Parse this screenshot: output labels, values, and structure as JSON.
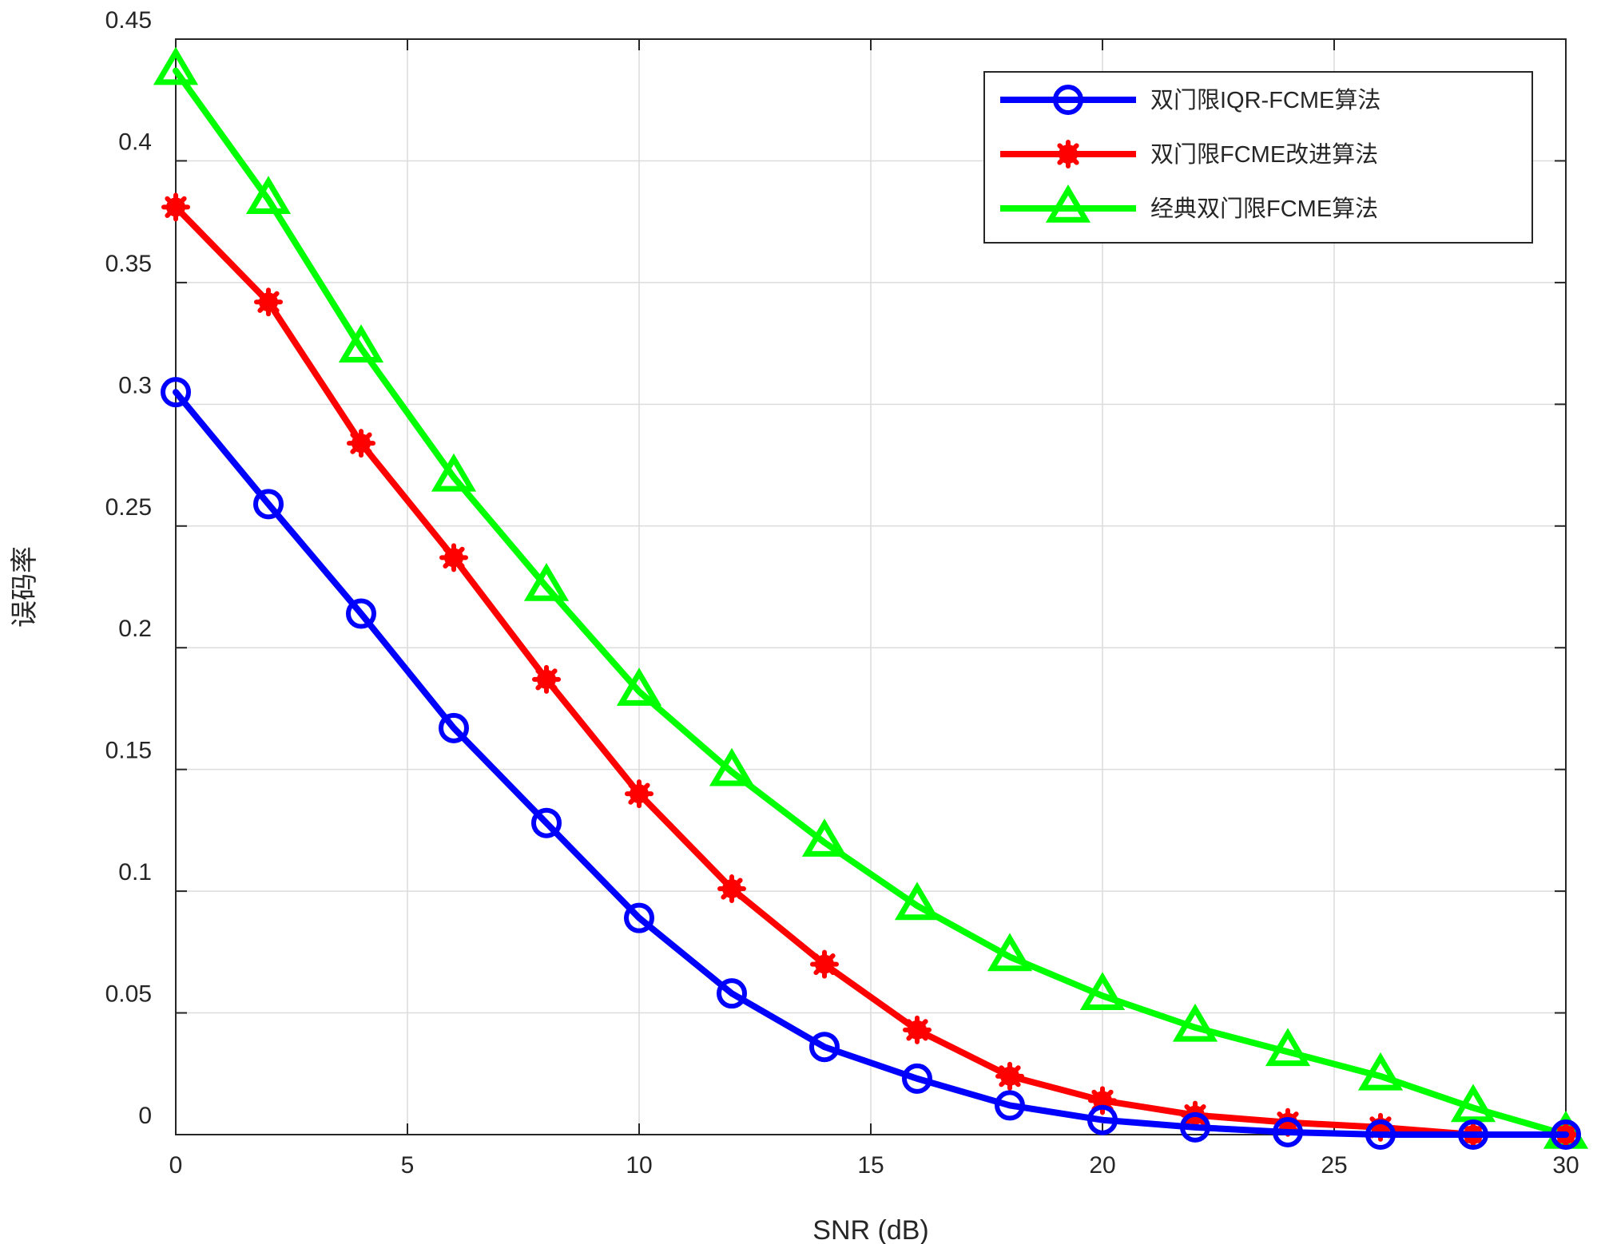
{
  "chart_data": {
    "type": "line",
    "x": [
      0,
      2,
      4,
      6,
      8,
      10,
      12,
      14,
      16,
      18,
      20,
      22,
      24,
      26,
      28,
      30
    ],
    "series": [
      {
        "name": "双门限IQR-FCME算法",
        "color": "#0000ff",
        "marker": "circle",
        "values": [
          0.305,
          0.259,
          0.214,
          0.167,
          0.128,
          0.089,
          0.058,
          0.036,
          0.023,
          0.012,
          0.006,
          0.003,
          0.001,
          0.0,
          0.0,
          0.0
        ]
      },
      {
        "name": "双门限FCME改进算法",
        "color": "#ff0000",
        "marker": "asterisk",
        "values": [
          0.381,
          0.342,
          0.284,
          0.237,
          0.187,
          0.14,
          0.101,
          0.07,
          0.043,
          0.024,
          0.014,
          0.008,
          0.005,
          0.003,
          0.0,
          0.0
        ]
      },
      {
        "name": "经典双门限FCME算法",
        "color": "#00ff00",
        "marker": "triangle",
        "values": [
          0.437,
          0.384,
          0.323,
          0.27,
          0.225,
          0.182,
          0.149,
          0.12,
          0.094,
          0.073,
          0.057,
          0.044,
          0.034,
          0.024,
          0.011,
          0.0
        ]
      }
    ],
    "title": "",
    "xlabel": "SNR (dB)",
    "ylabel": "误码率",
    "xlim": [
      0,
      30
    ],
    "ylim": [
      0,
      0.45
    ],
    "xticks": [
      "0",
      "5",
      "10",
      "15",
      "20",
      "25",
      "30"
    ],
    "yticks": [
      "0",
      "0.05",
      "0.1",
      "0.15",
      "0.2",
      "0.25",
      "0.3",
      "0.35",
      "0.4",
      "0.45"
    ],
    "grid": true,
    "legend_position": "top-right"
  }
}
